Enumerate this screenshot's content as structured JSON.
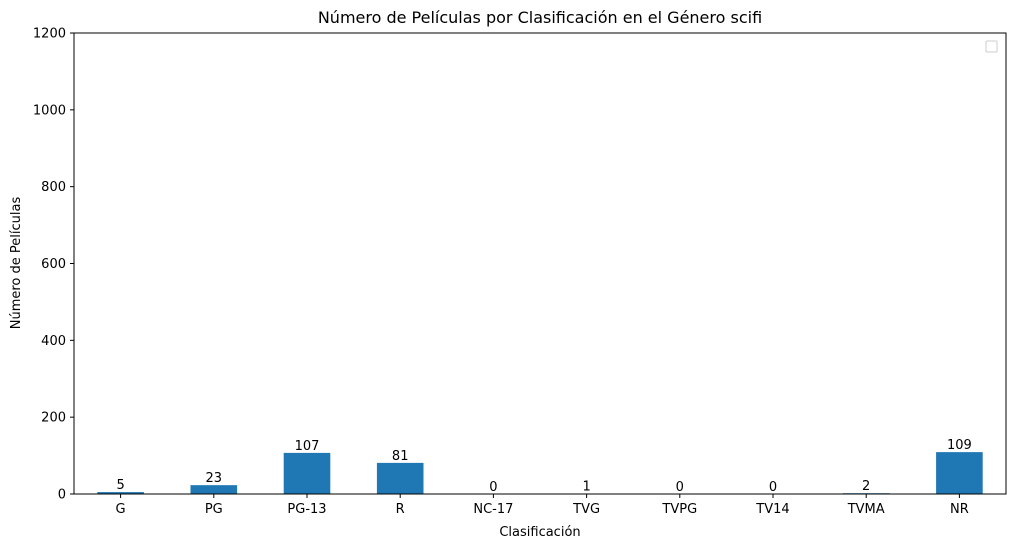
{
  "chart_data": {
    "type": "bar",
    "title": "Número de Películas por Clasificación en el Género scifi",
    "xlabel": "Clasificación",
    "ylabel": "Número de Películas",
    "categories": [
      "G",
      "PG",
      "PG-13",
      "R",
      "NC-17",
      "TVG",
      "TVPG",
      "TV14",
      "TVMA",
      "NR"
    ],
    "values": [
      5,
      23,
      107,
      81,
      0,
      1,
      0,
      0,
      2,
      109
    ],
    "ylim": [
      0,
      1200
    ],
    "yticks": [
      0,
      200,
      400,
      600,
      800,
      1000,
      1200
    ],
    "ytick_labels": [
      "0",
      "200",
      "400",
      "600",
      "800",
      "1000",
      "1200"
    ],
    "bar_color": "#1f77b4",
    "grid": false,
    "legend_placement": "top-right",
    "legend_entries": []
  }
}
